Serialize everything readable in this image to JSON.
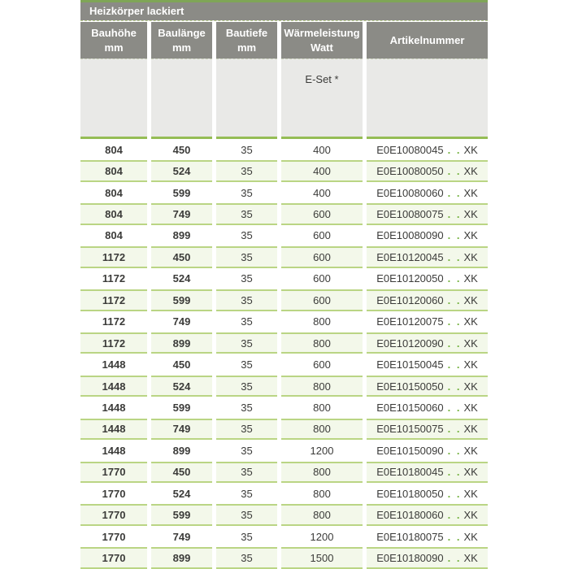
{
  "table": {
    "title": "Heizkörper lackiert",
    "columns": [
      {
        "line1": "Bauhöhe",
        "line2": "mm"
      },
      {
        "line1": "Baulänge",
        "line2": "mm"
      },
      {
        "line1": "Bautiefe",
        "line2": "mm"
      },
      {
        "line1": "Wärmeleistung",
        "line2": "Watt"
      },
      {
        "line1": "Artikelnummer",
        "line2": ""
      }
    ],
    "subheader": {
      "eset_label": "E-Set *"
    },
    "rows": [
      {
        "bauhoehe": "804",
        "baulaenge": "450",
        "bautiefe": "35",
        "watt": "400",
        "artikel_prefix": "E0E10080045",
        "artikel_dots": ". .",
        "artikel_suffix": "XK"
      },
      {
        "bauhoehe": "804",
        "baulaenge": "524",
        "bautiefe": "35",
        "watt": "400",
        "artikel_prefix": "E0E10080050",
        "artikel_dots": ". .",
        "artikel_suffix": "XK"
      },
      {
        "bauhoehe": "804",
        "baulaenge": "599",
        "bautiefe": "35",
        "watt": "400",
        "artikel_prefix": "E0E10080060",
        "artikel_dots": ". .",
        "artikel_suffix": "XK"
      },
      {
        "bauhoehe": "804",
        "baulaenge": "749",
        "bautiefe": "35",
        "watt": "600",
        "artikel_prefix": "E0E10080075",
        "artikel_dots": ". .",
        "artikel_suffix": "XK"
      },
      {
        "bauhoehe": "804",
        "baulaenge": "899",
        "bautiefe": "35",
        "watt": "600",
        "artikel_prefix": "E0E10080090",
        "artikel_dots": ". .",
        "artikel_suffix": "XK"
      },
      {
        "bauhoehe": "1172",
        "baulaenge": "450",
        "bautiefe": "35",
        "watt": "600",
        "artikel_prefix": "E0E10120045",
        "artikel_dots": ". .",
        "artikel_suffix": "XK"
      },
      {
        "bauhoehe": "1172",
        "baulaenge": "524",
        "bautiefe": "35",
        "watt": "600",
        "artikel_prefix": "E0E10120050",
        "artikel_dots": ". .",
        "artikel_suffix": "XK"
      },
      {
        "bauhoehe": "1172",
        "baulaenge": "599",
        "bautiefe": "35",
        "watt": "600",
        "artikel_prefix": "E0E10120060",
        "artikel_dots": ". .",
        "artikel_suffix": "XK"
      },
      {
        "bauhoehe": "1172",
        "baulaenge": "749",
        "bautiefe": "35",
        "watt": "800",
        "artikel_prefix": "E0E10120075",
        "artikel_dots": ". .",
        "artikel_suffix": "XK"
      },
      {
        "bauhoehe": "1172",
        "baulaenge": "899",
        "bautiefe": "35",
        "watt": "800",
        "artikel_prefix": "E0E10120090",
        "artikel_dots": ". .",
        "artikel_suffix": "XK"
      },
      {
        "bauhoehe": "1448",
        "baulaenge": "450",
        "bautiefe": "35",
        "watt": "600",
        "artikel_prefix": "E0E10150045",
        "artikel_dots": ". .",
        "artikel_suffix": "XK"
      },
      {
        "bauhoehe": "1448",
        "baulaenge": "524",
        "bautiefe": "35",
        "watt": "800",
        "artikel_prefix": "E0E10150050",
        "artikel_dots": ". .",
        "artikel_suffix": "XK"
      },
      {
        "bauhoehe": "1448",
        "baulaenge": "599",
        "bautiefe": "35",
        "watt": "800",
        "artikel_prefix": "E0E10150060",
        "artikel_dots": ". .",
        "artikel_suffix": "XK"
      },
      {
        "bauhoehe": "1448",
        "baulaenge": "749",
        "bautiefe": "35",
        "watt": "800",
        "artikel_prefix": "E0E10150075",
        "artikel_dots": ". .",
        "artikel_suffix": "XK"
      },
      {
        "bauhoehe": "1448",
        "baulaenge": "899",
        "bautiefe": "35",
        "watt": "1200",
        "artikel_prefix": "E0E10150090",
        "artikel_dots": ". .",
        "artikel_suffix": "XK"
      },
      {
        "bauhoehe": "1770",
        "baulaenge": "450",
        "bautiefe": "35",
        "watt": "800",
        "artikel_prefix": "E0E10180045",
        "artikel_dots": ". .",
        "artikel_suffix": "XK"
      },
      {
        "bauhoehe": "1770",
        "baulaenge": "524",
        "bautiefe": "35",
        "watt": "800",
        "artikel_prefix": "E0E10180050",
        "artikel_dots": ". .",
        "artikel_suffix": "XK"
      },
      {
        "bauhoehe": "1770",
        "baulaenge": "599",
        "bautiefe": "35",
        "watt": "800",
        "artikel_prefix": "E0E10180060",
        "artikel_dots": ". .",
        "artikel_suffix": "XK"
      },
      {
        "bauhoehe": "1770",
        "baulaenge": "749",
        "bautiefe": "35",
        "watt": "1200",
        "artikel_prefix": "E0E10180075",
        "artikel_dots": ". .",
        "artikel_suffix": "XK"
      },
      {
        "bauhoehe": "1770",
        "baulaenge": "899",
        "bautiefe": "35",
        "watt": "1500",
        "artikel_prefix": "E0E10180090",
        "artikel_dots": ". .",
        "artikel_suffix": "XK"
      }
    ]
  },
  "colors": {
    "header_gray": "#8b8b86",
    "subheader_gray": "#e9e9e7",
    "top_line_green": "#7fa557",
    "separator_green": "#95bd55",
    "row_border_green": "#bad584",
    "row_bg_green": "#f3f8ea",
    "dots_green": "#74b23f",
    "text_dark": "#3b3b39",
    "dash_line": "#b9cc90",
    "dash_line_light": "#cdd3bd"
  }
}
